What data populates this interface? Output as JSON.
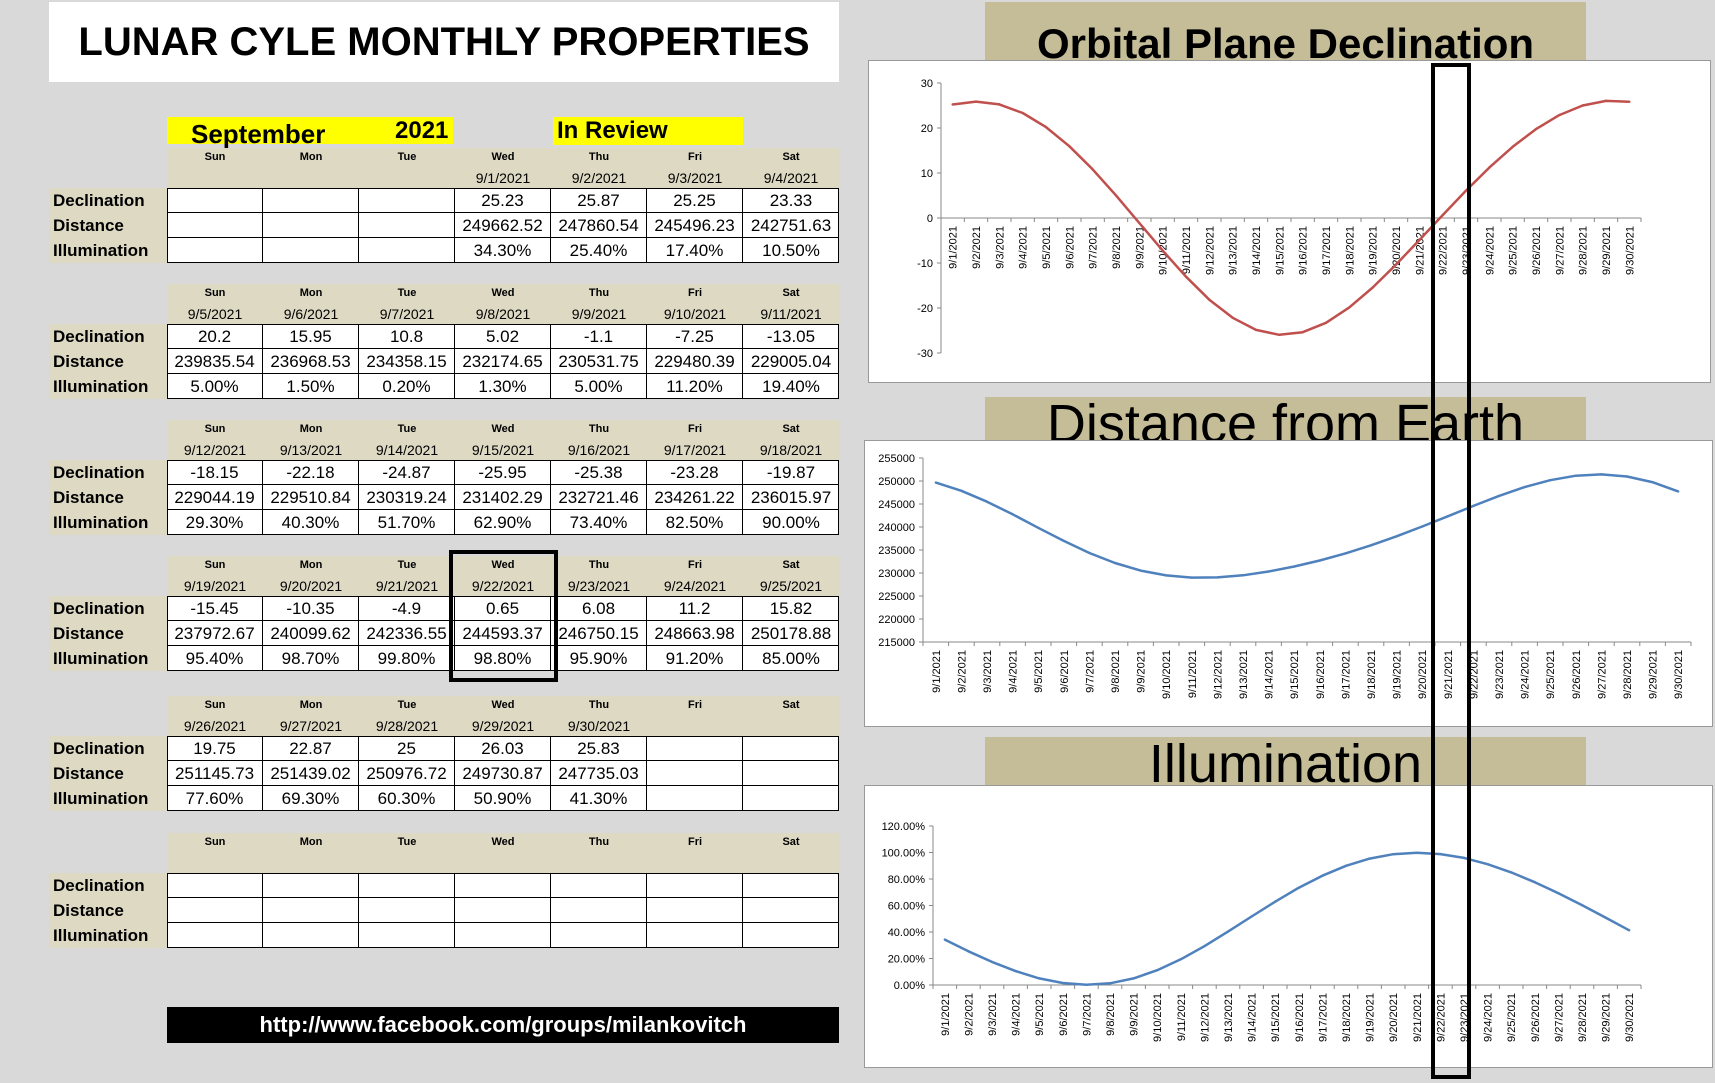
{
  "title": "LUNAR CYLE MONTHLY PROPERTIES",
  "month": "September",
  "year": "2021",
  "review_label": "In Review",
  "footer": "http://www.facebook.com/groups/milankovitch",
  "row_labels": [
    "Declination",
    "Distance",
    "Illumination"
  ],
  "weeks": [
    {
      "days": [
        "Sun",
        "Mon",
        "Tue",
        "Wed",
        "Thu",
        "Fri",
        "Sat"
      ],
      "dates": [
        "",
        "",
        "",
        "9/1/2021",
        "9/2/2021",
        "9/3/2021",
        "9/4/2021"
      ],
      "declination": [
        "",
        "",
        "",
        "25.23",
        "25.87",
        "25.25",
        "23.33"
      ],
      "distance": [
        "",
        "",
        "",
        "249662.52",
        "247860.54",
        "245496.23",
        "242751.63"
      ],
      "illumination": [
        "",
        "",
        "",
        "34.30%",
        "25.40%",
        "17.40%",
        "10.50%"
      ]
    },
    {
      "days": [
        "Sun",
        "Mon",
        "Tue",
        "Wed",
        "Thu",
        "Fri",
        "Sat"
      ],
      "dates": [
        "9/5/2021",
        "9/6/2021",
        "9/7/2021",
        "9/8/2021",
        "9/9/2021",
        "9/10/2021",
        "9/11/2021"
      ],
      "declination": [
        "20.2",
        "15.95",
        "10.8",
        "5.02",
        "-1.1",
        "-7.25",
        "-13.05"
      ],
      "distance": [
        "239835.54",
        "236968.53",
        "234358.15",
        "232174.65",
        "230531.75",
        "229480.39",
        "229005.04"
      ],
      "illumination": [
        "5.00%",
        "1.50%",
        "0.20%",
        "1.30%",
        "5.00%",
        "11.20%",
        "19.40%"
      ]
    },
    {
      "days": [
        "Sun",
        "Mon",
        "Tue",
        "Wed",
        "Thu",
        "Fri",
        "Sat"
      ],
      "dates": [
        "9/12/2021",
        "9/13/2021",
        "9/14/2021",
        "9/15/2021",
        "9/16/2021",
        "9/17/2021",
        "9/18/2021"
      ],
      "declination": [
        "-18.15",
        "-22.18",
        "-24.87",
        "-25.95",
        "-25.38",
        "-23.28",
        "-19.87"
      ],
      "distance": [
        "229044.19",
        "229510.84",
        "230319.24",
        "231402.29",
        "232721.46",
        "234261.22",
        "236015.97"
      ],
      "illumination": [
        "29.30%",
        "40.30%",
        "51.70%",
        "62.90%",
        "73.40%",
        "82.50%",
        "90.00%"
      ]
    },
    {
      "days": [
        "Sun",
        "Mon",
        "Tue",
        "Wed",
        "Thu",
        "Fri",
        "Sat"
      ],
      "dates": [
        "9/19/2021",
        "9/20/2021",
        "9/21/2021",
        "9/22/2021",
        "9/23/2021",
        "9/24/2021",
        "9/25/2021"
      ],
      "declination": [
        "-15.45",
        "-10.35",
        "-4.9",
        "0.65",
        "6.08",
        "11.2",
        "15.82"
      ],
      "distance": [
        "237972.67",
        "240099.62",
        "242336.55",
        "244593.37",
        "246750.15",
        "248663.98",
        "250178.88"
      ],
      "illumination": [
        "95.40%",
        "98.70%",
        "99.80%",
        "98.80%",
        "95.90%",
        "91.20%",
        "85.00%"
      ]
    },
    {
      "days": [
        "Sun",
        "Mon",
        "Tue",
        "Wed",
        "Thu",
        "Fri",
        "Sat"
      ],
      "dates": [
        "9/26/2021",
        "9/27/2021",
        "9/28/2021",
        "9/29/2021",
        "9/30/2021",
        "",
        ""
      ],
      "declination": [
        "19.75",
        "22.87",
        "25",
        "26.03",
        "25.83",
        "",
        ""
      ],
      "distance": [
        "251145.73",
        "251439.02",
        "250976.72",
        "249730.87",
        "247735.03",
        "",
        ""
      ],
      "illumination": [
        "77.60%",
        "69.30%",
        "60.30%",
        "50.90%",
        "41.30%",
        "",
        ""
      ]
    },
    {
      "days": [
        "Sun",
        "Mon",
        "Tue",
        "Wed",
        "Thu",
        "Fri",
        "Sat"
      ],
      "dates": [
        "",
        "",
        "",
        "",
        "",
        "",
        ""
      ],
      "declination": [
        "",
        "",
        "",
        "",
        "",
        "",
        ""
      ],
      "distance": [
        "",
        "",
        "",
        "",
        "",
        "",
        ""
      ],
      "illumination": [
        "",
        "",
        "",
        "",
        "",
        "",
        ""
      ]
    }
  ],
  "highlight_date": "9/22/2021",
  "chart_data": [
    {
      "type": "line",
      "title": "Orbital Plane Declination",
      "line_color": "#c0504d",
      "x": [
        "9/1/2021",
        "9/2/2021",
        "9/3/2021",
        "9/4/2021",
        "9/5/2021",
        "9/6/2021",
        "9/7/2021",
        "9/8/2021",
        "9/9/2021",
        "9/10/2021",
        "9/11/2021",
        "9/12/2021",
        "9/13/2021",
        "9/14/2021",
        "9/15/2021",
        "9/16/2021",
        "9/17/2021",
        "9/18/2021",
        "9/19/2021",
        "9/20/2021",
        "9/21/2021",
        "9/22/2021",
        "9/23/2021",
        "9/24/2021",
        "9/25/2021",
        "9/26/2021",
        "9/27/2021",
        "9/28/2021",
        "9/29/2021",
        "9/30/2021"
      ],
      "values": [
        25.23,
        25.87,
        25.25,
        23.33,
        20.2,
        15.95,
        10.8,
        5.02,
        -1.1,
        -7.25,
        -13.05,
        -18.15,
        -22.18,
        -24.87,
        -25.95,
        -25.38,
        -23.28,
        -19.87,
        -15.45,
        -10.35,
        -4.9,
        0.65,
        6.08,
        11.2,
        15.82,
        19.75,
        22.87,
        25,
        26.03,
        25.83
      ],
      "ylim": [
        -30,
        30
      ],
      "yticks": [
        "30",
        "20",
        "10",
        "0",
        "-10",
        "-20",
        "-30"
      ],
      "grid": false
    },
    {
      "type": "line",
      "title": "Distance from Earth",
      "line_color": "#4f81bd",
      "x": [
        "9/1/2021",
        "9/2/2021",
        "9/3/2021",
        "9/4/2021",
        "9/5/2021",
        "9/6/2021",
        "9/7/2021",
        "9/8/2021",
        "9/9/2021",
        "9/10/2021",
        "9/11/2021",
        "9/12/2021",
        "9/13/2021",
        "9/14/2021",
        "9/15/2021",
        "9/16/2021",
        "9/17/2021",
        "9/18/2021",
        "9/19/2021",
        "9/20/2021",
        "9/21/2021",
        "9/22/2021",
        "9/23/2021",
        "9/24/2021",
        "9/25/2021",
        "9/26/2021",
        "9/27/2021",
        "9/28/2021",
        "9/29/2021",
        "9/30/2021"
      ],
      "values": [
        249662.52,
        247860.54,
        245496.23,
        242751.63,
        239835.54,
        236968.53,
        234358.15,
        232174.65,
        230531.75,
        229480.39,
        229005.04,
        229044.19,
        229510.84,
        230319.24,
        231402.29,
        232721.46,
        234261.22,
        236015.97,
        237972.67,
        240099.62,
        242336.55,
        244593.37,
        246750.15,
        248663.98,
        250178.88,
        251145.73,
        251439.02,
        250976.72,
        249730.87,
        247735.03
      ],
      "ylim": [
        215000,
        255000
      ],
      "yticks": [
        "255000",
        "250000",
        "245000",
        "240000",
        "235000",
        "230000",
        "225000",
        "220000",
        "215000"
      ],
      "grid": false
    },
    {
      "type": "line",
      "title": "Illumination",
      "line_color": "#4f81bd",
      "x": [
        "9/1/2021",
        "9/2/2021",
        "9/3/2021",
        "9/4/2021",
        "9/5/2021",
        "9/6/2021",
        "9/7/2021",
        "9/8/2021",
        "9/9/2021",
        "9/10/2021",
        "9/11/2021",
        "9/12/2021",
        "9/13/2021",
        "9/14/2021",
        "9/15/2021",
        "9/16/2021",
        "9/17/2021",
        "9/18/2021",
        "9/19/2021",
        "9/20/2021",
        "9/21/2021",
        "9/22/2021",
        "9/23/2021",
        "9/24/2021",
        "9/25/2021",
        "9/26/2021",
        "9/27/2021",
        "9/28/2021",
        "9/29/2021",
        "9/30/2021"
      ],
      "values": [
        34.3,
        25.4,
        17.4,
        10.5,
        5.0,
        1.5,
        0.2,
        1.3,
        5.0,
        11.2,
        19.4,
        29.3,
        40.3,
        51.7,
        62.9,
        73.4,
        82.5,
        90.0,
        95.4,
        98.7,
        99.8,
        98.8,
        95.9,
        91.2,
        85.0,
        77.6,
        69.3,
        60.3,
        50.9,
        41.3
      ],
      "ylim": [
        0,
        120
      ],
      "yticks": [
        "120.00%",
        "100.00%",
        "80.00%",
        "60.00%",
        "40.00%",
        "20.00%",
        "0.00%"
      ],
      "grid": false
    }
  ]
}
